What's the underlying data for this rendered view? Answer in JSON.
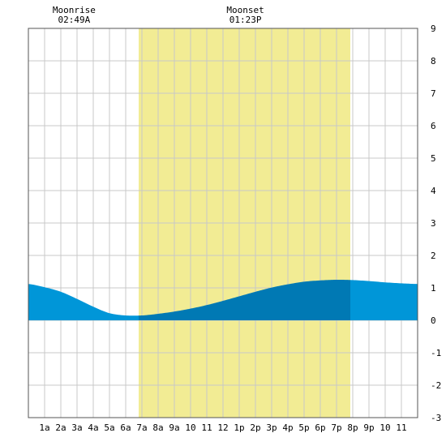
{
  "chart_data": {
    "type": "area",
    "x_unit": "hour of day",
    "xlim": [
      0,
      24
    ],
    "ylim": [
      -3,
      9
    ],
    "y_ticks": [
      -3,
      -2,
      -1,
      0,
      1,
      2,
      3,
      4,
      5,
      6,
      7,
      8,
      9
    ],
    "x_ticks": [
      {
        "hour": 1,
        "label": "1a"
      },
      {
        "hour": 2,
        "label": "2a"
      },
      {
        "hour": 3,
        "label": "3a"
      },
      {
        "hour": 4,
        "label": "4a"
      },
      {
        "hour": 5,
        "label": "5a"
      },
      {
        "hour": 6,
        "label": "6a"
      },
      {
        "hour": 7,
        "label": "7a"
      },
      {
        "hour": 8,
        "label": "8a"
      },
      {
        "hour": 9,
        "label": "9a"
      },
      {
        "hour": 10,
        "label": "10"
      },
      {
        "hour": 11,
        "label": "11"
      },
      {
        "hour": 12,
        "label": "12"
      },
      {
        "hour": 13,
        "label": "1p"
      },
      {
        "hour": 14,
        "label": "2p"
      },
      {
        "hour": 15,
        "label": "3p"
      },
      {
        "hour": 16,
        "label": "4p"
      },
      {
        "hour": 17,
        "label": "5p"
      },
      {
        "hour": 18,
        "label": "6p"
      },
      {
        "hour": 19,
        "label": "7p"
      },
      {
        "hour": 20,
        "label": "8p"
      },
      {
        "hour": 21,
        "label": "9p"
      },
      {
        "hour": 22,
        "label": "10"
      },
      {
        "hour": 23,
        "label": "11"
      }
    ],
    "grid": true,
    "daylight": {
      "start": 6.8,
      "end": 19.85
    },
    "moon_events": [
      {
        "name": "Moonrise",
        "time": "02:49A",
        "hour": 2.82
      },
      {
        "name": "Moonset",
        "time": "01:23P",
        "hour": 13.38
      }
    ],
    "series": [
      {
        "x": [
          0,
          1,
          2,
          3,
          4,
          5,
          6,
          7,
          8,
          9,
          10,
          11,
          12,
          13,
          14,
          15,
          16,
          17,
          18,
          19,
          20,
          21,
          22,
          23,
          24
        ],
        "values": [
          1.12,
          1.02,
          0.88,
          0.66,
          0.42,
          0.22,
          0.15,
          0.15,
          0.2,
          0.27,
          0.36,
          0.47,
          0.6,
          0.74,
          0.88,
          1.01,
          1.11,
          1.19,
          1.23,
          1.25,
          1.24,
          1.21,
          1.17,
          1.14,
          1.12
        ]
      }
    ],
    "colors": {
      "daylight": "#f2ec94",
      "tide_night": "#0096d8",
      "tide_day": "#0079b4",
      "grid": "#c8c8c8",
      "frame": "#555555"
    }
  }
}
